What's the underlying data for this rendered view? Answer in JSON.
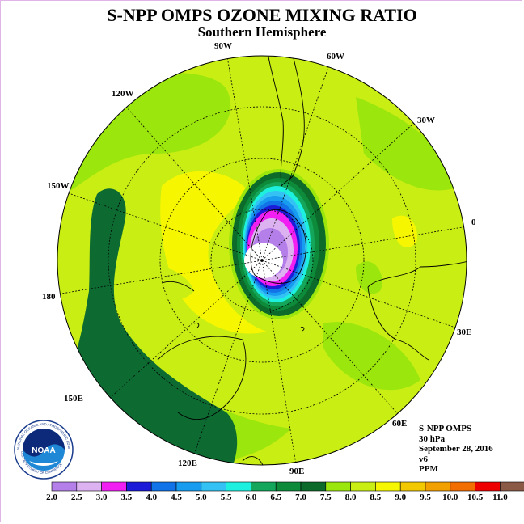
{
  "title": "S-NPP OMPS OZONE MIXING RATIO",
  "subtitle": "Southern Hemisphere",
  "longitude_labels": [
    "90W",
    "60W",
    "30W",
    "0",
    "30E",
    "60E",
    "90E",
    "120E",
    "150E",
    "180",
    "150W",
    "120W"
  ],
  "info": {
    "product": "S-NPP OMPS",
    "level": "30 hPa",
    "date": "September 28, 2016",
    "version": "v6",
    "units": "PPM"
  },
  "logo": {
    "text": "NOAA",
    "ring_text": "NATIONAL OCEANIC AND ATMOSPHERIC ADMINISTRATION",
    "ring_text_bottom": "U.S. DEPARTMENT OF COMMERCE"
  },
  "colorbar": {
    "ticks": [
      "2.0",
      "2.5",
      "3.0",
      "3.5",
      "4.0",
      "4.5",
      "5.0",
      "5.5",
      "6.0",
      "6.5",
      "7.0",
      "7.5",
      "8.0",
      "8.5",
      "9.0",
      "9.5",
      "10.0",
      "10.5",
      "11.0"
    ],
    "colors": [
      "#b57fea",
      "#dcb2f0",
      "#f21ff2",
      "#1b1bd8",
      "#1273e8",
      "#189cf0",
      "#34c2f4",
      "#1ef0e0",
      "#14a65a",
      "#0d8a3a",
      "#0c6a2a",
      "#9be60c",
      "#c8ee14",
      "#f6f600",
      "#f2c800",
      "#f2a000",
      "#f26e00",
      "#ee0000",
      "#8a5a46"
    ]
  },
  "colors": {
    "ozone_hole_center": "#ffffff",
    "background_field": "#c8ee14",
    "high_band": "#0d6b32"
  }
}
